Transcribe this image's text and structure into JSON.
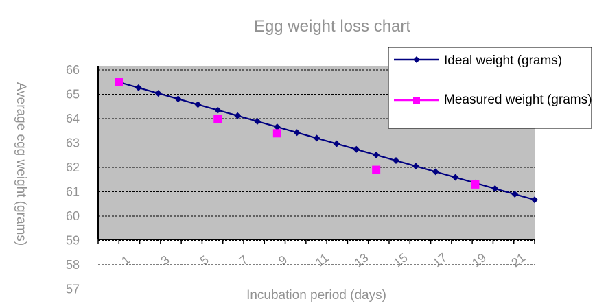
{
  "chart_data": {
    "type": "line",
    "title": "Egg weight loss chart",
    "xlabel": "Incubation period (days)",
    "ylabel": "Average egg weight (grams)",
    "x": [
      0,
      1,
      2,
      3,
      4,
      5,
      6,
      7,
      8,
      9,
      10,
      11,
      12,
      13,
      14,
      15,
      16,
      17,
      18,
      19,
      20,
      21
    ],
    "x_tick_labels": [
      "1",
      "3",
      "5",
      "7",
      "9",
      "11",
      "13",
      "15",
      "17",
      "19",
      "21"
    ],
    "y_tick_labels": [
      "66",
      "65",
      "64",
      "63",
      "62",
      "61",
      "60",
      "59",
      "58",
      "57"
    ],
    "xlim": [
      0,
      21
    ],
    "ylim": [
      57,
      66
    ],
    "grid": true,
    "legend_position": "top-right",
    "series": [
      {
        "name": "Ideal weight (grams)",
        "kind": "line",
        "marker": "diamond",
        "color": "#000080",
        "x": [
          0,
          1,
          2,
          3,
          4,
          5,
          6,
          7,
          8,
          9,
          10,
          11,
          12,
          13,
          14,
          15,
          16,
          17,
          18,
          19,
          20,
          21
        ],
        "values": [
          65.5,
          65.27,
          65.04,
          64.81,
          64.58,
          64.35,
          64.12,
          63.89,
          63.66,
          63.43,
          63.2,
          62.97,
          62.74,
          62.51,
          62.28,
          62.05,
          61.82,
          61.59,
          61.36,
          61.13,
          60.9,
          60.67
        ]
      },
      {
        "name": "Measured weight (grams)",
        "kind": "scatter",
        "marker": "square",
        "color": "#ff00ff",
        "x": [
          0,
          5,
          8,
          13,
          18
        ],
        "values": [
          65.5,
          64.0,
          63.4,
          61.9,
          61.3
        ]
      }
    ]
  },
  "colors": {
    "plot_background": "#c0c0c0",
    "gridline": "#000000",
    "ideal_line": "#000080",
    "measured_marker": "#ff00ff"
  }
}
